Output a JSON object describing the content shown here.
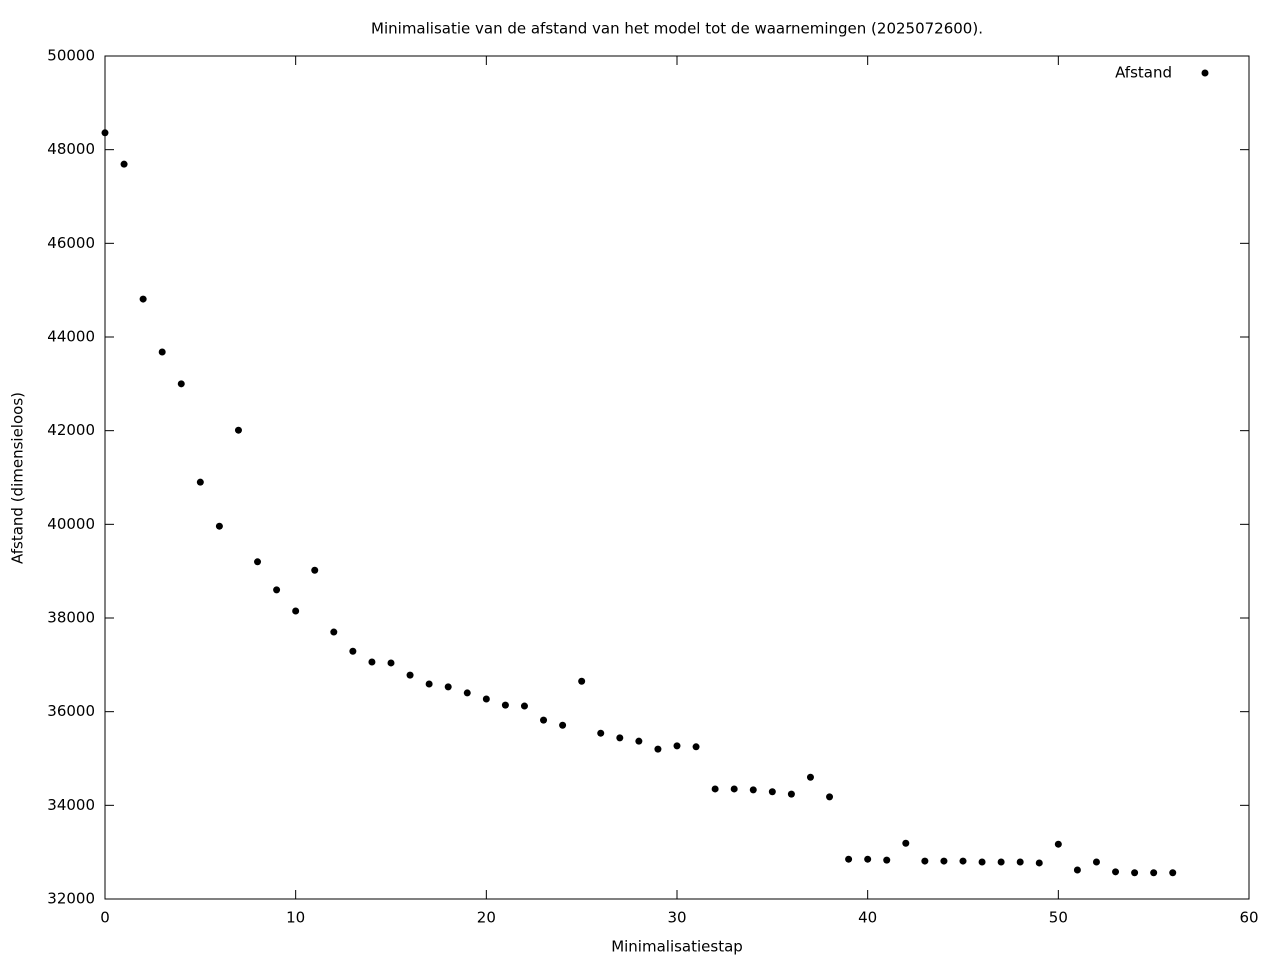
{
  "chart_data": {
    "type": "scatter",
    "title": "Minimalisatie van de afstand van het model tot de waarnemingen (2025072600).",
    "x_label": "Minimalisatiestap",
    "y_label": "Afstand (dimensieloos)",
    "x": [
      0,
      1,
      2,
      3,
      4,
      5,
      6,
      7,
      8,
      9,
      10,
      11,
      12,
      13,
      14,
      15,
      16,
      17,
      18,
      19,
      20,
      21,
      22,
      23,
      24,
      25,
      26,
      27,
      28,
      29,
      30,
      31,
      32,
      33,
      34,
      35,
      36,
      37,
      38,
      39,
      40,
      41,
      42,
      43,
      44,
      45,
      46,
      47,
      48,
      49,
      50,
      51,
      52,
      53,
      54,
      55,
      56
    ],
    "series": [
      {
        "name": "Afstand",
        "color": "#000000",
        "values": [
          48360,
          47690,
          44810,
          43680,
          43000,
          40900,
          39960,
          42010,
          39200,
          38600,
          38150,
          39020,
          37700,
          37290,
          37060,
          37040,
          36780,
          36590,
          36530,
          36400,
          36270,
          36140,
          36120,
          35820,
          35710,
          36650,
          35540,
          35440,
          35370,
          35200,
          35270,
          35250,
          34350,
          34350,
          34330,
          34290,
          34240,
          34600,
          34180,
          32850,
          32850,
          32830,
          33190,
          32810,
          32810,
          32810,
          32790,
          32790,
          32790,
          32770,
          33170,
          32620,
          32790,
          32580,
          32560,
          32560,
          32560
        ]
      }
    ],
    "xlim": [
      0,
      60
    ],
    "xticks": [
      0,
      10,
      20,
      30,
      40,
      50,
      60
    ],
    "ylim": [
      32000,
      50000
    ],
    "yticks": [
      32000,
      34000,
      36000,
      38000,
      40000,
      42000,
      44000,
      46000,
      48000,
      50000
    ],
    "grid": false,
    "legend": "top-right"
  }
}
